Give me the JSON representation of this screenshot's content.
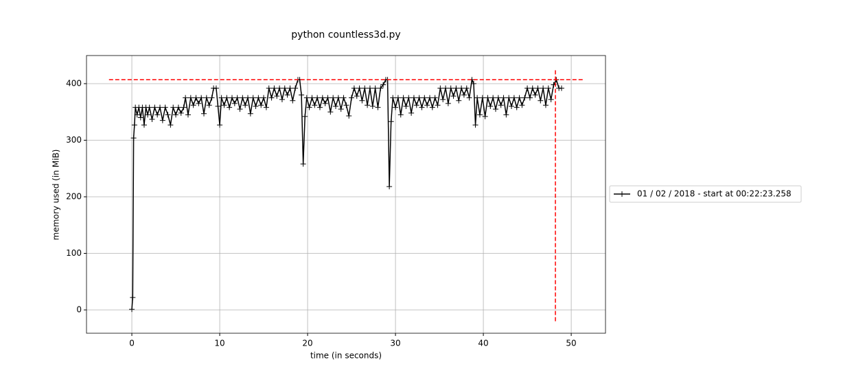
{
  "chart_data": {
    "type": "line",
    "title": "python countless3d.py",
    "xlabel": "time (in seconds)",
    "ylabel": "memory used (in MiB)",
    "x": [
      0,
      0.1,
      0.2,
      0.3,
      0.4,
      0.6,
      0.8,
      1.0,
      1.2,
      1.4,
      1.6,
      1.8,
      2.0,
      2.3,
      2.6,
      2.9,
      3.2,
      3.5,
      3.8,
      4.1,
      4.4,
      4.7,
      5.0,
      5.3,
      5.6,
      5.9,
      6.1,
      6.4,
      6.7,
      7.0,
      7.3,
      7.6,
      7.9,
      8.2,
      8.5,
      8.8,
      9.1,
      9.3,
      9.6,
      9.8,
      10.0,
      10.2,
      10.5,
      10.8,
      11.1,
      11.4,
      11.7,
      12.0,
      12.3,
      12.6,
      12.9,
      13.2,
      13.5,
      13.8,
      14.1,
      14.4,
      14.7,
      15.0,
      15.3,
      15.6,
      15.9,
      16.2,
      16.5,
      16.8,
      17.1,
      17.4,
      17.7,
      18.0,
      18.3,
      18.6,
      18.9,
      19.1,
      19.3,
      19.5,
      19.7,
      19.9,
      20.2,
      20.5,
      20.8,
      21.1,
      21.4,
      21.7,
      22.0,
      22.3,
      22.6,
      22.9,
      23.2,
      23.5,
      23.8,
      24.1,
      24.4,
      24.7,
      25.0,
      25.3,
      25.6,
      25.9,
      26.2,
      26.5,
      26.8,
      27.1,
      27.4,
      27.7,
      28.0,
      28.3,
      28.6,
      28.9,
      29.1,
      29.3,
      29.5,
      29.7,
      30.0,
      30.3,
      30.6,
      30.9,
      31.2,
      31.5,
      31.8,
      32.1,
      32.4,
      32.7,
      33.0,
      33.3,
      33.6,
      33.9,
      34.2,
      34.5,
      34.8,
      35.1,
      35.4,
      35.7,
      36.0,
      36.3,
      36.6,
      36.9,
      37.2,
      37.5,
      37.8,
      38.1,
      38.4,
      38.7,
      38.9,
      39.1,
      39.3,
      39.6,
      39.9,
      40.2,
      40.5,
      40.8,
      41.1,
      41.4,
      41.7,
      42.0,
      42.3,
      42.6,
      42.9,
      43.2,
      43.5,
      43.8,
      44.1,
      44.4,
      44.7,
      45.0,
      45.3,
      45.6,
      45.9,
      46.2,
      46.5,
      46.8,
      47.1,
      47.4,
      47.7,
      48.0,
      48.3,
      48.6,
      48.9
    ],
    "series": [
      {
        "name": "01 / 02 / 2018 - start at 00:22:23.258",
        "color": "#000000",
        "values": [
          1,
          22,
          304,
          327,
          358,
          345,
          358,
          340,
          358,
          327,
          358,
          345,
          358,
          337,
          358,
          345,
          358,
          335,
          358,
          345,
          327,
          358,
          345,
          358,
          348,
          358,
          375,
          345,
          375,
          362,
          375,
          365,
          375,
          347,
          375,
          362,
          375,
          392,
          392,
          360,
          327,
          375,
          362,
          375,
          358,
          375,
          365,
          375,
          355,
          375,
          362,
          375,
          347,
          375,
          360,
          375,
          362,
          375,
          358,
          392,
          375,
          392,
          378,
          392,
          372,
          392,
          380,
          392,
          370,
          392,
          407,
          407,
          380,
          258,
          342,
          375,
          358,
          375,
          362,
          375,
          358,
          375,
          365,
          375,
          350,
          375,
          360,
          375,
          355,
          375,
          362,
          343,
          375,
          392,
          378,
          392,
          370,
          392,
          362,
          392,
          360,
          392,
          358,
          392,
          398,
          407,
          407,
          218,
          333,
          375,
          358,
          375,
          345,
          375,
          360,
          375,
          348,
          375,
          362,
          375,
          358,
          375,
          362,
          375,
          358,
          375,
          362,
          392,
          372,
          392,
          365,
          392,
          378,
          392,
          370,
          392,
          380,
          392,
          375,
          407,
          400,
          327,
          375,
          345,
          375,
          342,
          375,
          360,
          375,
          355,
          375,
          362,
          375,
          345,
          375,
          360,
          375,
          358,
          375,
          362,
          375,
          392,
          375,
          392,
          380,
          392,
          370,
          392,
          362,
          392,
          372,
          398,
          407,
          392,
          392
        ]
      }
    ],
    "xlim": [
      -5.16,
      53.9
    ],
    "ylim": [
      -41.2,
      449.7
    ],
    "xticks": [
      0,
      10,
      20,
      30,
      40,
      50
    ],
    "yticks": [
      0,
      100,
      200,
      300,
      400
    ],
    "grid": true,
    "legend": "right outside",
    "max_hline": {
      "y": 407,
      "xmin": -2.6,
      "xmax": 51.3,
      "color": "#ff0000"
    },
    "max_vline": {
      "x": 48.2,
      "ymin": -20,
      "ymax": 427,
      "color": "#ff0000"
    }
  }
}
